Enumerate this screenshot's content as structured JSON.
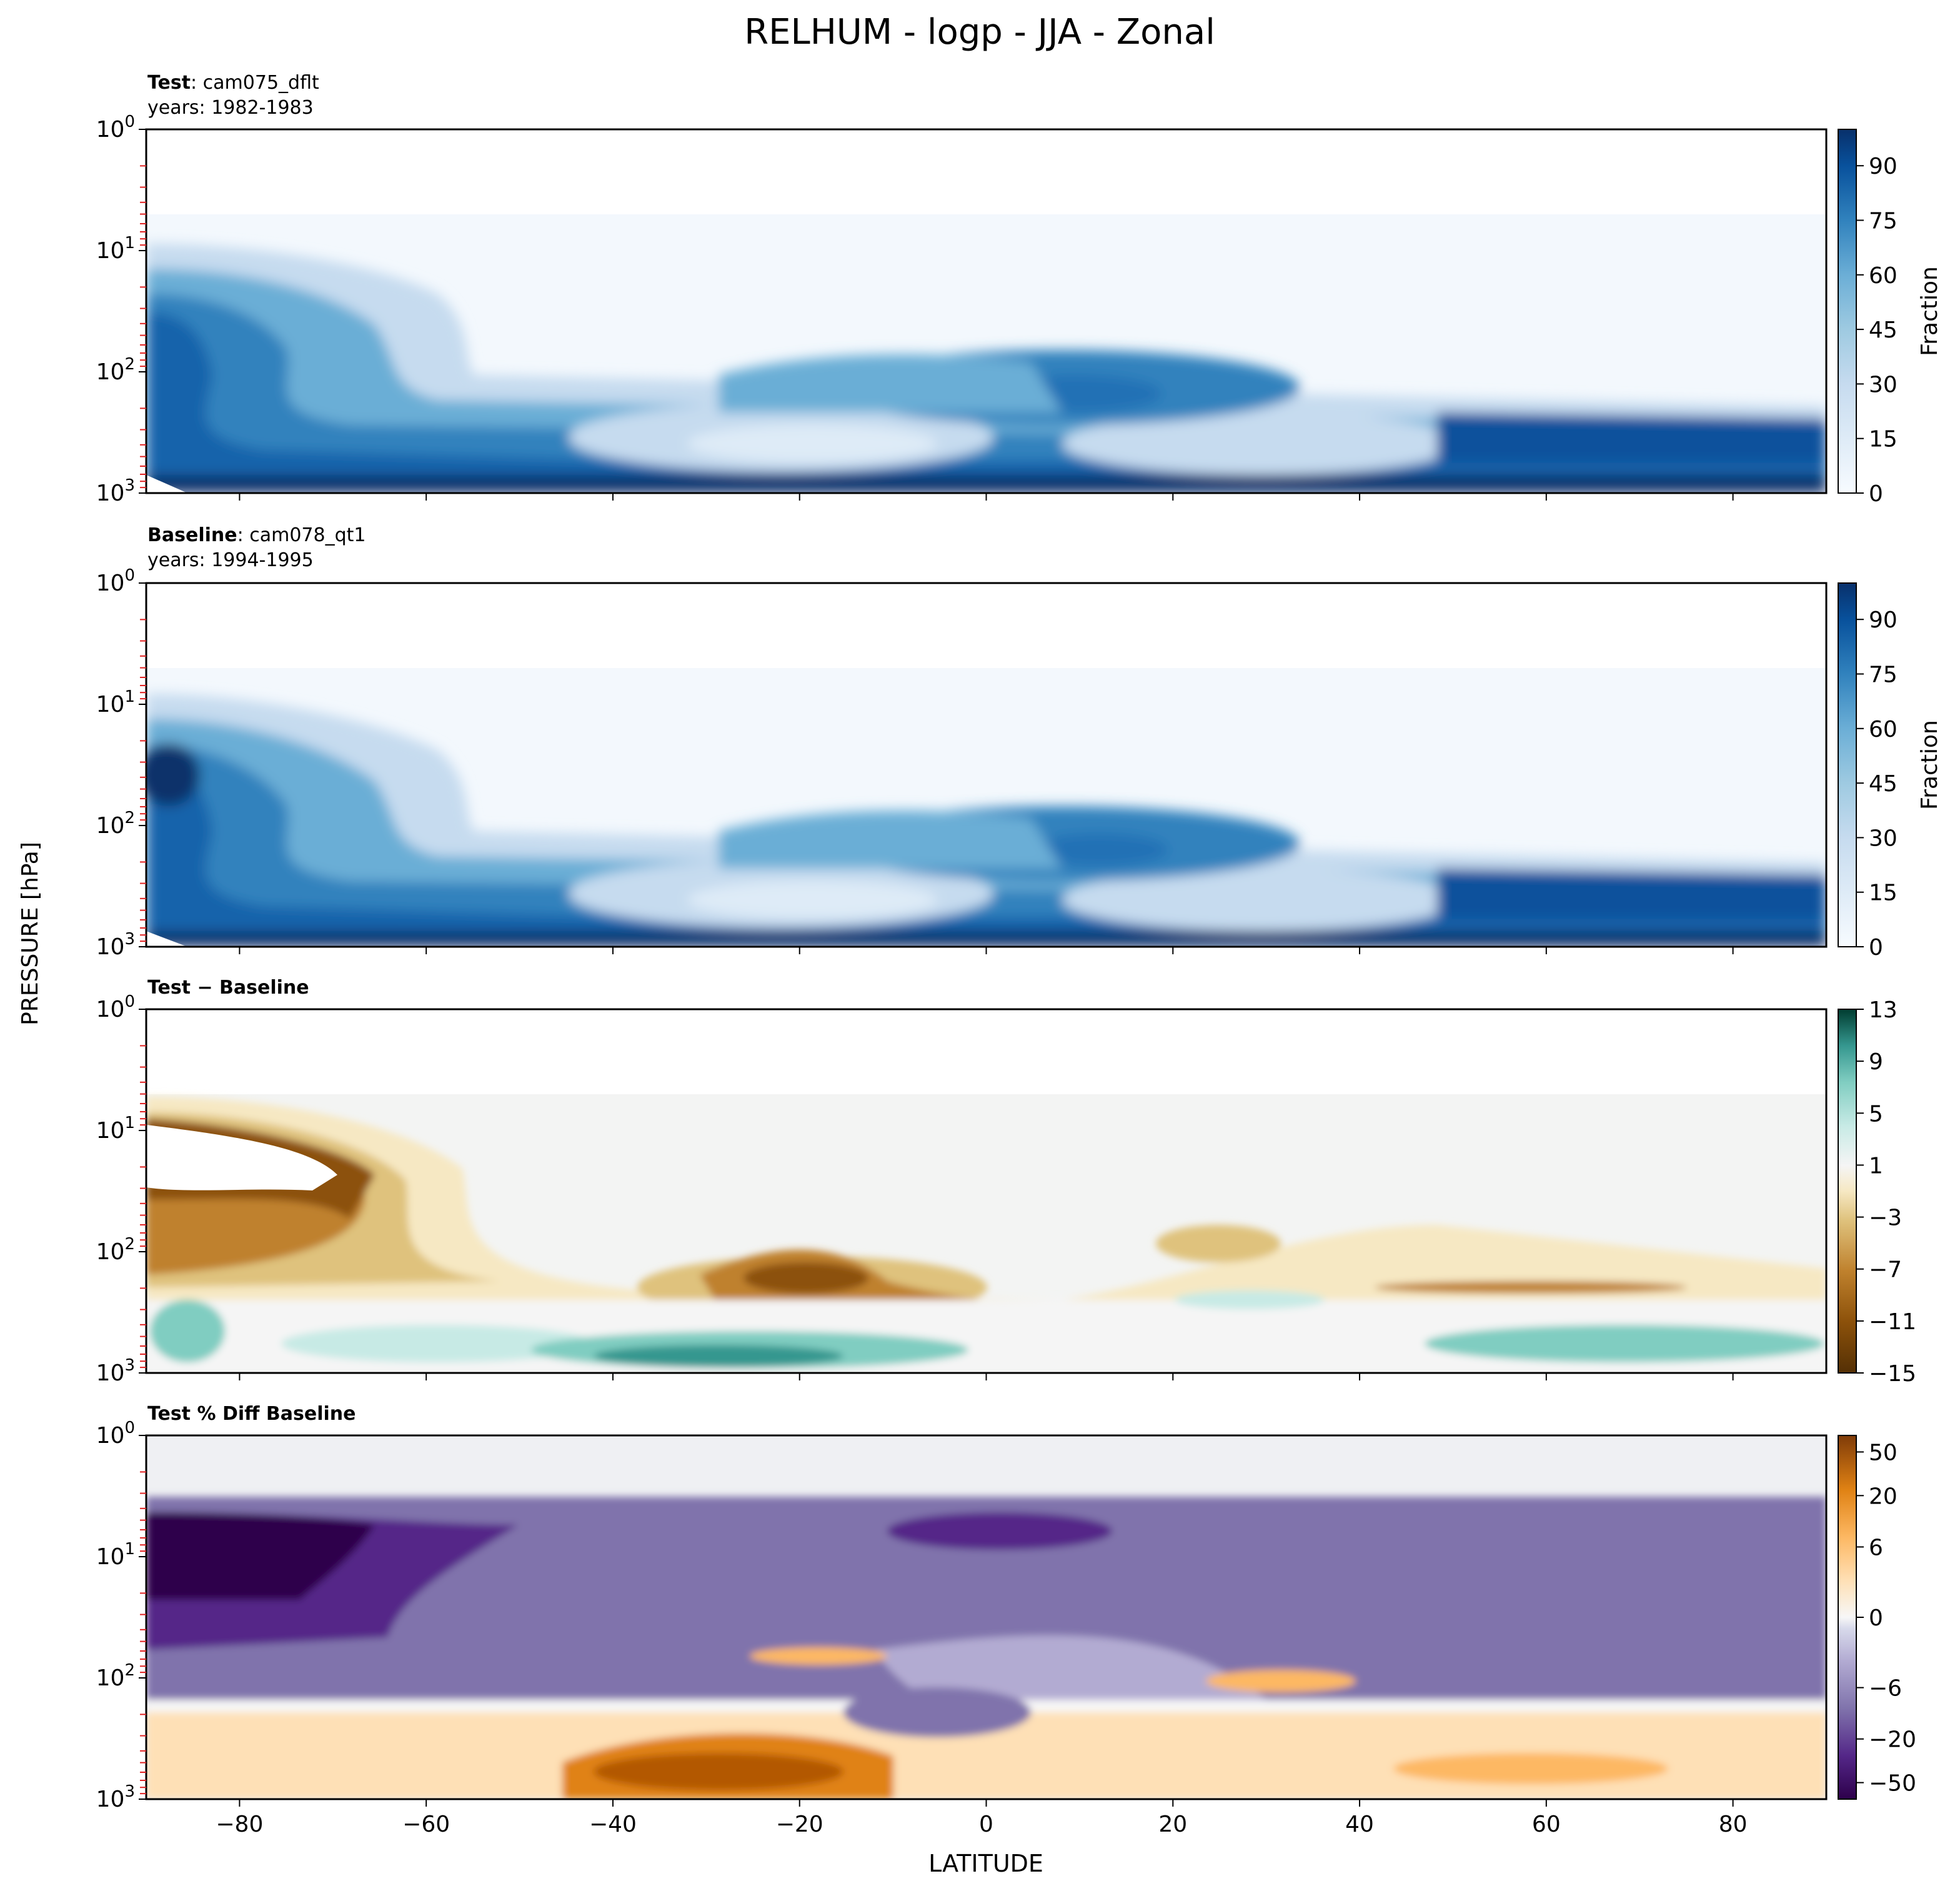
{
  "figure": {
    "title": "RELHUM - logp - JJA - Zonal",
    "xlabel": "LATITUDE",
    "ylabel": "PRESSURE [hPa]"
  },
  "chart_data": [
    {
      "type": "heatmap",
      "id": "test",
      "title_bold": "Test",
      "title_rest": ": cam075_dflt",
      "subtitle": "years: 1982-1983",
      "xlim": [
        -90,
        90
      ],
      "ylim": [
        1,
        1000
      ],
      "yscale": "log",
      "y_ticks": [
        "10",
        "10",
        "10",
        "10"
      ],
      "y_exponents": [
        "0",
        "1",
        "2",
        "3"
      ],
      "x_ticks": [
        "−80",
        "−60",
        "−40",
        "−20",
        "0",
        "20",
        "40",
        "60",
        "80"
      ],
      "x_tick_values": [
        -80,
        -60,
        -40,
        -20,
        0,
        20,
        40,
        60,
        80
      ],
      "show_xticklabels": false,
      "colormap": "Blues",
      "colorbar": {
        "label": "Fraction",
        "ticks": [
          "0",
          "15",
          "30",
          "45",
          "60",
          "75",
          "90"
        ],
        "tick_values": [
          0,
          15,
          30,
          45,
          60,
          75,
          90
        ],
        "range": [
          0,
          100
        ]
      }
    },
    {
      "type": "heatmap",
      "id": "baseline",
      "title_bold": "Baseline",
      "title_rest": ": cam078_qt1",
      "subtitle": "years: 1994-1995",
      "xlim": [
        -90,
        90
      ],
      "ylim": [
        1,
        1000
      ],
      "yscale": "log",
      "y_ticks": [
        "10",
        "10",
        "10",
        "10"
      ],
      "y_exponents": [
        "0",
        "1",
        "2",
        "3"
      ],
      "x_ticks": [
        "−80",
        "−60",
        "−40",
        "−20",
        "0",
        "20",
        "40",
        "60",
        "80"
      ],
      "x_tick_values": [
        -80,
        -60,
        -40,
        -20,
        0,
        20,
        40,
        60,
        80
      ],
      "show_xticklabels": false,
      "colormap": "Blues",
      "colorbar": {
        "label": "Fraction",
        "ticks": [
          "0",
          "15",
          "30",
          "45",
          "60",
          "75",
          "90"
        ],
        "tick_values": [
          0,
          15,
          30,
          45,
          60,
          75,
          90
        ],
        "range": [
          0,
          100
        ]
      }
    },
    {
      "type": "heatmap",
      "id": "diff",
      "title_bold": "Test − Baseline",
      "title_rest": "",
      "subtitle": "",
      "xlim": [
        -90,
        90
      ],
      "ylim": [
        1,
        1000
      ],
      "yscale": "log",
      "y_ticks": [
        "10",
        "10",
        "10",
        "10"
      ],
      "y_exponents": [
        "0",
        "1",
        "2",
        "3"
      ],
      "x_ticks": [
        "−80",
        "−60",
        "−40",
        "−20",
        "0",
        "20",
        "40",
        "60",
        "80"
      ],
      "x_tick_values": [
        -80,
        -60,
        -40,
        -20,
        0,
        20,
        40,
        60,
        80
      ],
      "show_xticklabels": false,
      "colormap": "BrBG",
      "colorbar": {
        "label": "",
        "ticks": [
          "−15",
          "−11",
          "−7",
          "−3",
          "1",
          "5",
          "9",
          "13"
        ],
        "tick_values": [
          -15,
          -11,
          -7,
          -3,
          1,
          5,
          9,
          13
        ],
        "range": [
          -15,
          13
        ]
      }
    },
    {
      "type": "heatmap",
      "id": "pctdiff",
      "title_bold": "Test % Diff Baseline",
      "title_rest": "",
      "subtitle": "",
      "xlim": [
        -90,
        90
      ],
      "ylim": [
        1,
        1000
      ],
      "yscale": "log",
      "y_ticks": [
        "10",
        "10",
        "10",
        "10"
      ],
      "y_exponents": [
        "0",
        "1",
        "2",
        "3"
      ],
      "x_ticks": [
        "−80",
        "−60",
        "−40",
        "−20",
        "0",
        "20",
        "40",
        "60",
        "80"
      ],
      "x_tick_values": [
        -80,
        -60,
        -40,
        -20,
        0,
        20,
        40,
        60,
        80
      ],
      "show_xticklabels": true,
      "colormap": "PuOr",
      "colorbar": {
        "label": "",
        "ticks": [
          "−50",
          "−20",
          "−6",
          "0",
          "6",
          "20",
          "50"
        ],
        "tick_values": [
          -50,
          -20,
          -6,
          0,
          6,
          20,
          50
        ],
        "range": [
          -70,
          70
        ]
      }
    }
  ]
}
